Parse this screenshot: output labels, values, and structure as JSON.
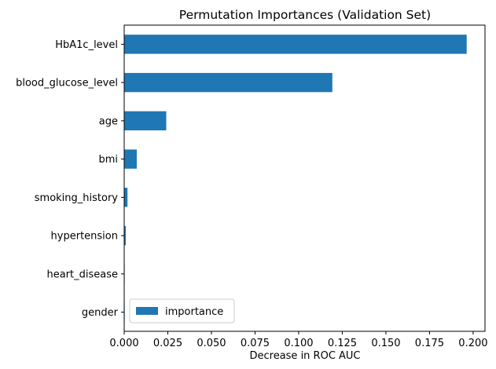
{
  "chart_data": {
    "type": "bar",
    "orientation": "horizontal",
    "title": "Permutation Importances (Validation Set)",
    "xlabel": "Decrease in ROC AUC",
    "ylabel": "",
    "categories": [
      "HbA1c_level",
      "blood_glucose_level",
      "age",
      "bmi",
      "smoking_history",
      "hypertension",
      "heart_disease",
      "gender"
    ],
    "series": [
      {
        "name": "importance",
        "color": "#1f77b4",
        "values": [
          0.1963,
          0.1193,
          0.0241,
          0.0072,
          0.0019,
          0.0009,
          0.0002,
          0.0001
        ]
      }
    ],
    "xlim": [
      0.0,
      0.2068
    ],
    "xticks": [
      "0.000",
      "0.025",
      "0.050",
      "0.075",
      "0.100",
      "0.125",
      "0.150",
      "0.175",
      "0.200"
    ],
    "xtick_values": [
      0.0,
      0.025,
      0.05,
      0.075,
      0.1,
      0.125,
      0.15,
      0.175,
      0.2
    ],
    "grid": false,
    "legend_placement": "lower-left"
  }
}
